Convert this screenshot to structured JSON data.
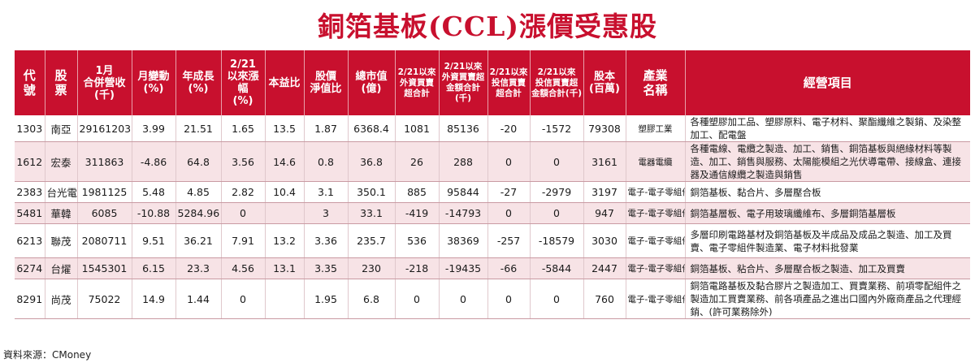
{
  "title": "銅箔基板(CCL)漲價受惠股",
  "headers": [
    "代\n號",
    "股\n票",
    "1月\n合併營收\n(千)",
    "月變動\n(%)",
    "年成長\n(%)",
    "2/21\n以來漲幅\n(%)",
    "本益比",
    "股價\n淨值比",
    "總市值\n(億)",
    "2/21以來\n外資買賣\n超合計",
    "2/21以來\n外資買賣超\n金額合計(千)",
    "2/21以來\n投信買賣\n超合計",
    "2/21以來\n投信買賣超\n金額合計(千)",
    "股本\n(百萬)",
    "產業\n名稱",
    "經營項目"
  ],
  "rows": [
    [
      "1303",
      "南亞",
      "29161203",
      "3.99",
      "21.51",
      "1.65",
      "13.5",
      "1.87",
      "6368.4",
      "1081",
      "85136",
      "-20",
      "-1572",
      "79308",
      "塑膠工業",
      "各種塑膠加工品、塑膠原料、電子材料、聚酯纖維之製銷、及染整加工、配電盤"
    ],
    [
      "1612",
      "宏泰",
      "311863",
      "-4.86",
      "64.8",
      "3.56",
      "14.6",
      "0.8",
      "36.8",
      "26",
      "288",
      "0",
      "0",
      "3161",
      "電器電纜",
      "各種電線、電纜之製造、加工、銷售、銅箔基板與絕緣材料等製造、加工、銷售與服務、太陽能模組之光伏導電帶、接線盒、連接器及通信線纜之製造與銷售"
    ],
    [
      "2383",
      "台光電",
      "1981125",
      "5.48",
      "4.85",
      "2.82",
      "10.4",
      "3.1",
      "350.1",
      "885",
      "95844",
      "-27",
      "-2979",
      "3197",
      "電子-電子零組件",
      "銅箔基板、黏合片、多層壓合板"
    ],
    [
      "5481",
      "華韓",
      "6085",
      "-10.88",
      "5284.96",
      "0",
      "",
      "3",
      "33.1",
      "-419",
      "-14793",
      "0",
      "0",
      "947",
      "電子-電子零組件",
      "銅箔基層板、電子用玻璃纖維布、多層銅箔基層板"
    ],
    [
      "6213",
      "聯茂",
      "2080711",
      "9.51",
      "36.21",
      "7.91",
      "13.2",
      "3.36",
      "235.7",
      "536",
      "38369",
      "-257",
      "-18579",
      "3030",
      "電子-電子零組件",
      "多層印刷電路基材及銅箔基板及半成品及成品之製造、加工及買賣、電子零組件製造業、電子材料批發業"
    ],
    [
      "6274",
      "台燿",
      "1545301",
      "6.15",
      "23.3",
      "4.56",
      "13.1",
      "3.35",
      "230",
      "-218",
      "-19435",
      "-66",
      "-5844",
      "2447",
      "電子-電子零組件",
      "銅箔基板、粘合片、多層壓合板之製造、加工及買賣"
    ],
    [
      "8291",
      "尚茂",
      "75022",
      "14.9",
      "1.44",
      "0",
      "",
      "1.95",
      "6.8",
      "0",
      "0",
      "0",
      "0",
      "760",
      "電子-電子零組件",
      "銅箔電路基板及黏合膠片之製造加工、買賣業務、前項零配組件之製造加工買賣業務、前各項產品之進出口國內外廠商產品之代理經銷、(許可業務除外)"
    ]
  ],
  "source": "資料來源：CMoney",
  "colors": {
    "accent": "#c8102e",
    "stripe": "#f7e3e6"
  }
}
